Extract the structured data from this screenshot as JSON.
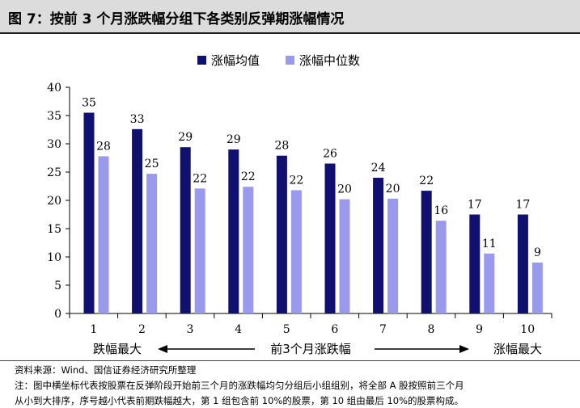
{
  "title": "图 7：按前 3 个月涨跌幅分组下各类别反弹期涨幅情况",
  "chart_data": {
    "type": "bar",
    "categories": [
      "1",
      "2",
      "3",
      "4",
      "5",
      "6",
      "7",
      "8",
      "9",
      "10"
    ],
    "series": [
      {
        "name": "涨幅均值",
        "values": [
          35.5,
          32.6,
          29.4,
          29.0,
          27.9,
          26.5,
          24.0,
          21.7,
          17.5,
          17.5
        ],
        "labels": [
          "35",
          "33",
          "29",
          "29",
          "28",
          "26",
          "24",
          "22",
          "17",
          "17"
        ],
        "color": "#101070"
      },
      {
        "name": "涨幅中位数",
        "values": [
          27.8,
          24.7,
          22.1,
          22.4,
          21.8,
          20.2,
          20.3,
          16.4,
          10.6,
          9.0
        ],
        "labels": [
          "28",
          "25",
          "22",
          "22",
          "22",
          "20",
          "20",
          "16",
          "11",
          "9"
        ],
        "color": "#9999ee"
      }
    ],
    "ylim": [
      0,
      40
    ],
    "yticks": [
      "0",
      "5",
      "10",
      "15",
      "20",
      "25",
      "30",
      "35",
      "40"
    ],
    "legend_position": "top",
    "annotations": {
      "left": "跌幅最大",
      "center": "前3个月涨跌幅",
      "right": "涨幅最大"
    }
  },
  "footer": {
    "source": "资料来源：Wind、国信证券经济研究所整理",
    "note_line1": "注：图中横坐标代表按股票在反弹阶段开始前三个月的涨跌幅均匀分组后小组组别，将全部 A 股按照前三个月",
    "note_line2": "从小到大排序，序号越小代表前期跌幅越大，第 1 组包含前 10%的股票，第 10 组由最后 10%的股票构成。"
  }
}
